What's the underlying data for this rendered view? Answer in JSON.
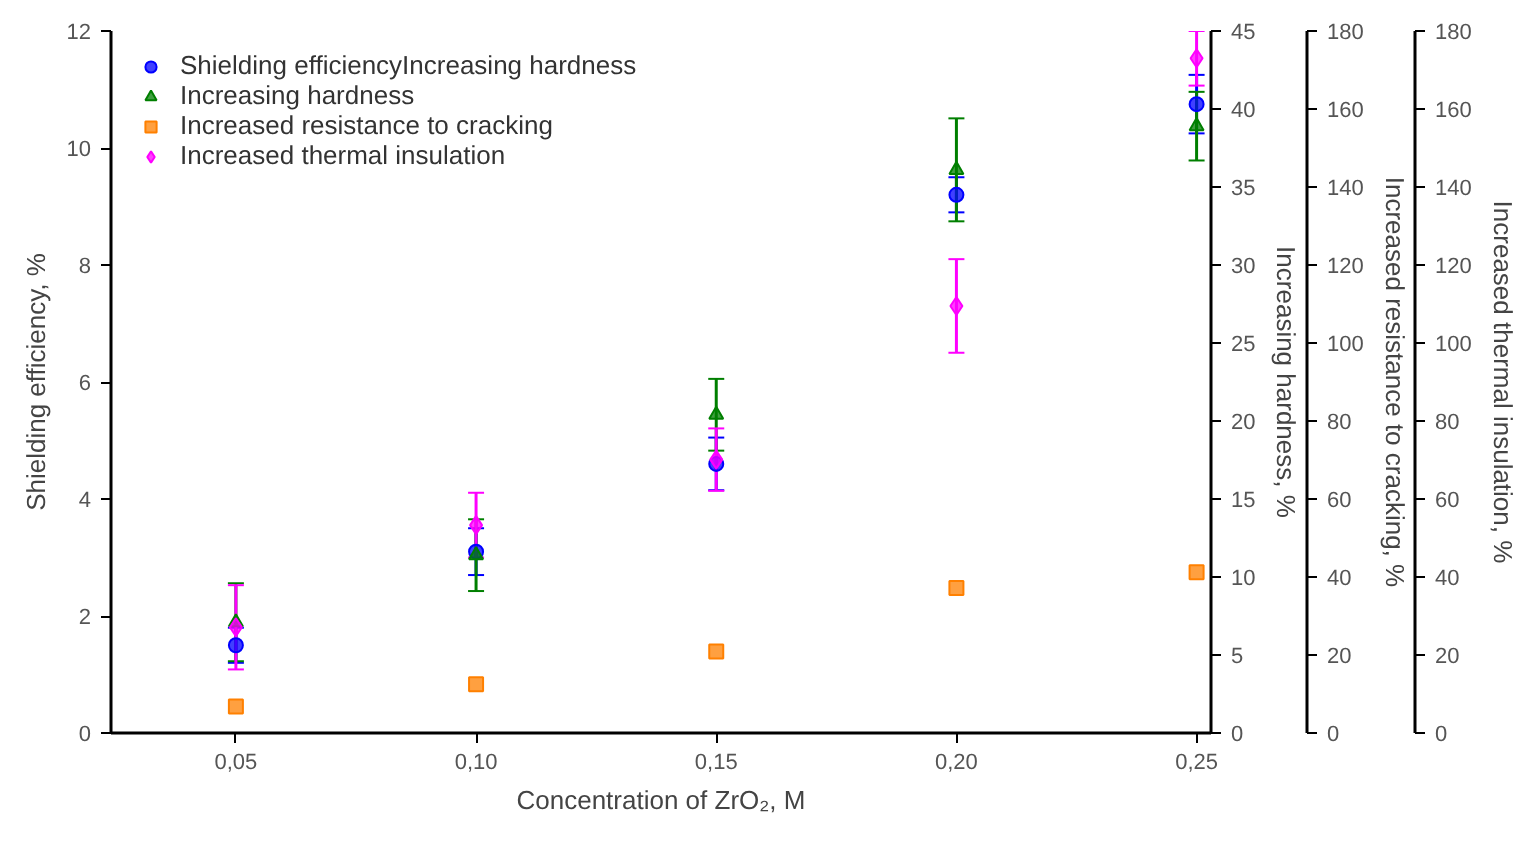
{
  "chart_data": {
    "type": "scatter",
    "xlabel": "Concentration of ZrO₂, M",
    "ylabel": "Shielding efficiency, %",
    "y2label": "Increasing hardness, %",
    "y3label": "Increased resistance to cracking, %",
    "annotations": [
      "Increased thermal insulation, %",
      "0",
      "20",
      "40",
      "60",
      "80",
      "100",
      "120",
      "140",
      "160",
      "180"
    ],
    "x": [
      0.05,
      0.1,
      0.15,
      0.2,
      0.25
    ],
    "xlim": [
      0.024,
      0.253
    ],
    "xticks": [
      {
        "value": 0.05,
        "label": "0,05"
      },
      {
        "value": 0.1,
        "label": "0,10"
      },
      {
        "value": 0.15,
        "label": "0,15"
      },
      {
        "value": 0.2,
        "label": "0,20"
      },
      {
        "value": 0.25,
        "label": "0,25"
      }
    ],
    "ylim": [
      0,
      12
    ],
    "yticks": [
      0,
      2,
      4,
      6,
      8,
      10,
      12
    ],
    "y2lim": [
      0,
      45
    ],
    "y2ticks": [
      0,
      5,
      10,
      15,
      20,
      25,
      30,
      35,
      40,
      45
    ],
    "y3lim": [
      0,
      180
    ],
    "y3ticks": [
      0,
      20,
      40,
      60,
      80,
      100,
      120,
      140,
      160,
      180
    ],
    "grid": false,
    "legend": "top left",
    "series": [
      {
        "name": "Shielding efficiencyIncreasing hardness",
        "color": "#0000ff",
        "marker": "circle",
        "values": [
          1.5,
          3.1,
          4.6,
          9.2,
          10.75
        ],
        "errors": [
          0.3,
          0.4,
          0.45,
          0.3,
          0.5
        ]
      },
      {
        "name": "Increasing hardness",
        "color": "#007f00",
        "marker": "triangle",
        "axis": "y2",
        "values": [
          7.1,
          11.4,
          20.4,
          36.1,
          38.9
        ],
        "errors": [
          2.5,
          2.3,
          2.3,
          3.3,
          2.2
        ]
      },
      {
        "name": "Increased resistance to cracking",
        "color": "#ff8000",
        "marker": "square",
        "axis": "y3",
        "values": [
          6.8,
          12.5,
          20.9,
          37.2,
          41.2
        ]
      },
      {
        "name": "Increased thermal insulation",
        "color": "#ff00ff",
        "marker": "diamond",
        "axis": "y3",
        "values": [
          27.1,
          53.3,
          70.1,
          109.5,
          173
        ],
        "errors": [
          10.8,
          8.3,
          8,
          12,
          7
        ]
      }
    ]
  }
}
